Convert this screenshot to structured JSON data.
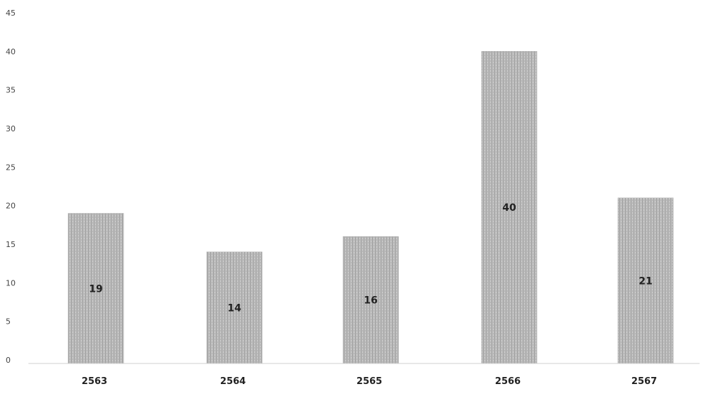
{
  "chart_data": {
    "type": "bar",
    "categories": [
      "2563",
      "2564",
      "2565",
      "2566",
      "2567"
    ],
    "values": [
      19,
      14,
      16,
      40,
      21
    ],
    "title": "",
    "xlabel": "",
    "ylabel": "",
    "ylim": [
      0,
      45
    ],
    "yticks": [
      0,
      5,
      10,
      15,
      20,
      25,
      30,
      35,
      40,
      45
    ],
    "grid": false,
    "legend": "none",
    "data_labels": true,
    "bar_color": "#b9b9b9"
  }
}
